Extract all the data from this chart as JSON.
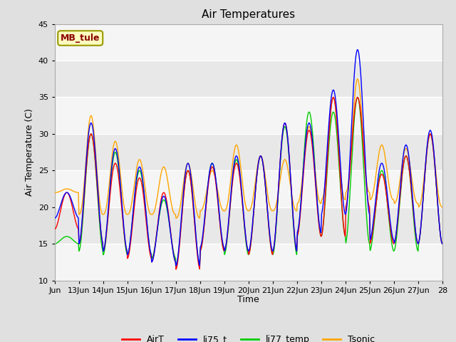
{
  "title": "Air Temperatures",
  "ylabel": "Air Temperature (C)",
  "xlabel": "Time",
  "ylim": [
    10,
    45
  ],
  "xlim": [
    0,
    32
  ],
  "annotation_text": "MB_tule",
  "annotation_color": "#8B0000",
  "annotation_bg": "#FFFFC0",
  "annotation_border": "#999900",
  "bg_color": "#E8E8E8",
  "fig_color": "#E0E0E0",
  "white_band_color": "#F8F8F8",
  "series_colors": {
    "AirT": "#FF0000",
    "li75_t": "#0000FF",
    "li77_temp": "#00CC00",
    "Tsonic": "#FFA500"
  },
  "xtick_labels": [
    "Jun",
    "13Jun",
    "14Jun",
    "15Jun",
    "16Jun",
    "17Jun",
    "18Jun",
    "19Jun",
    "20Jun",
    "21Jun",
    "22Jun",
    "23Jun",
    "24Jun",
    "25Jun",
    "26Jun",
    "27Jun",
    "28"
  ],
  "xtick_positions": [
    0,
    2,
    4,
    6,
    8,
    10,
    12,
    14,
    16,
    18,
    20,
    22,
    24,
    26,
    28,
    30,
    32
  ],
  "yticks": [
    10,
    15,
    20,
    25,
    30,
    35,
    40,
    45
  ]
}
